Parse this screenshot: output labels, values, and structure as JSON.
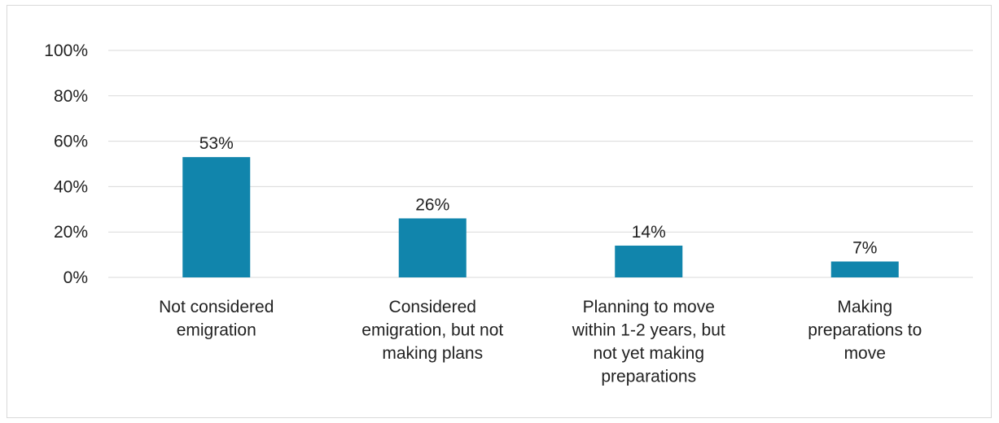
{
  "chart_data": {
    "type": "bar",
    "categories": [
      [
        "Not considered",
        "emigration"
      ],
      [
        "Considered",
        "emigration, but not",
        "making plans"
      ],
      [
        "Planning to move",
        "within 1-2 years, but",
        "not yet making",
        "preparations"
      ],
      [
        "Making",
        "preparations to",
        "move"
      ]
    ],
    "values": [
      53,
      26,
      14,
      7
    ],
    "data_labels": [
      "53%",
      "26%",
      "14%",
      "7%"
    ],
    "yticks": [
      "0%",
      "20%",
      "40%",
      "60%",
      "80%",
      "100%"
    ],
    "ylim": [
      0,
      100
    ],
    "grid": true,
    "bar_color": "#1185ac",
    "title": "",
    "xlabel": "",
    "ylabel": ""
  }
}
